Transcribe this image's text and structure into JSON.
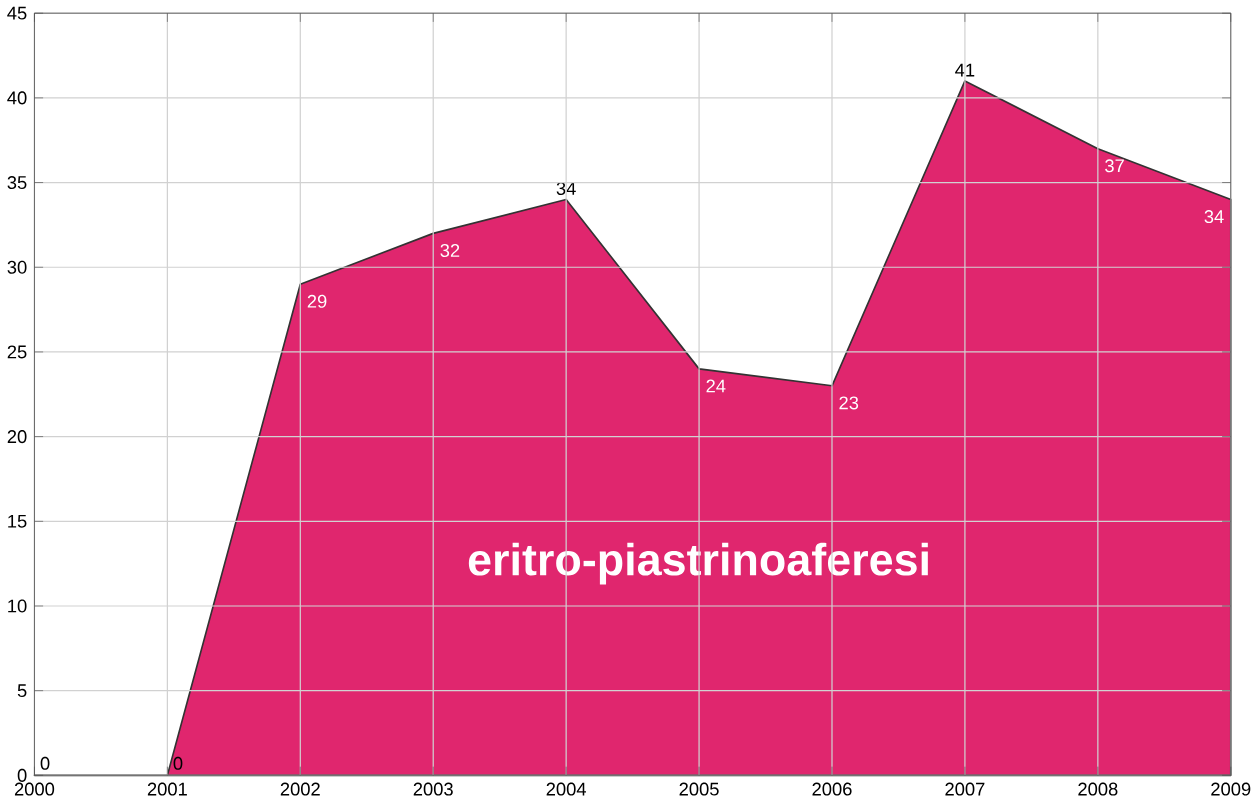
{
  "chart_data": {
    "type": "area",
    "x": [
      2000,
      2001,
      2002,
      2003,
      2004,
      2005,
      2006,
      2007,
      2008,
      2009
    ],
    "series": [
      {
        "name": "eritro-piastrinoaferesi",
        "color": "#e0266e",
        "values": [
          0,
          0,
          29,
          32,
          34,
          24,
          23,
          41,
          37,
          34
        ]
      }
    ],
    "xlim": [
      2000,
      2009
    ],
    "xticks": [
      2000,
      2001,
      2002,
      2003,
      2004,
      2005,
      2006,
      2007,
      2008,
      2009
    ],
    "ylim": [
      0,
      45
    ],
    "yticks": [
      0,
      5,
      10,
      15,
      20,
      25,
      30,
      35,
      40,
      45
    ],
    "grid": true,
    "data_labels": true
  }
}
